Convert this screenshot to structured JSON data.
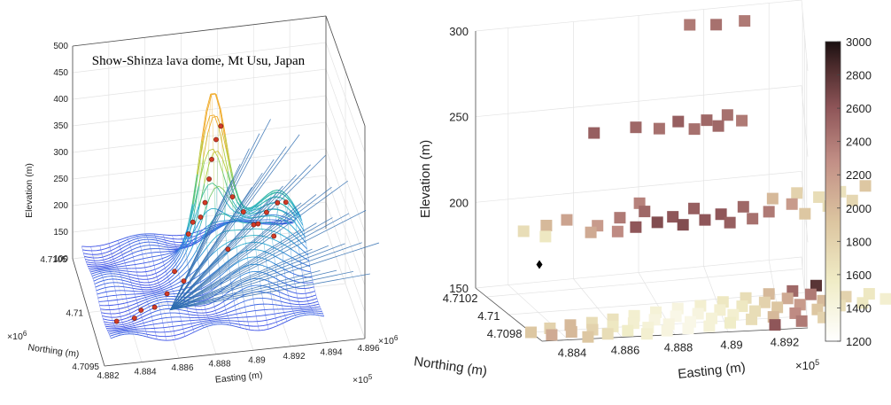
{
  "chart_data": [
    {
      "type": "surface",
      "title": "Show-Shinza lava dome, Mt Usu, Japan",
      "xlabel": "Easting (m)",
      "ylabel": "Northing (m)",
      "zlabel": "Elevation (m)",
      "x_ticks": [
        "4.882",
        "4.884",
        "4.886",
        "4.888",
        "4.89",
        "4.892",
        "4.894",
        "4.896"
      ],
      "x_exponent": "×10",
      "x_exponent_power": "5",
      "y_ticks": [
        "4.7095",
        "4.71",
        "4.7105"
      ],
      "y_exponent": "×10",
      "y_exponent_power": "6",
      "z_ticks": [
        "100",
        "150",
        "200",
        "250",
        "300",
        "350",
        "400",
        "450",
        "500"
      ],
      "zlim": [
        100,
        500
      ],
      "xlim": [
        488200,
        489600
      ],
      "ylim": [
        4709500,
        4710500
      ],
      "grid": true,
      "stations": [
        [
          488300,
          4709700,
          140
        ],
        [
          488400,
          4709720,
          138
        ],
        [
          488450,
          4709800,
          135
        ],
        [
          488520,
          4709780,
          142
        ],
        [
          488600,
          4709850,
          150
        ],
        [
          488700,
          4709900,
          160
        ],
        [
          488820,
          4710050,
          245
        ],
        [
          488850,
          4710080,
          265
        ],
        [
          488880,
          4710120,
          300
        ],
        [
          488900,
          4710150,
          330
        ],
        [
          488930,
          4710180,
          360
        ],
        [
          488960,
          4710200,
          380
        ],
        [
          488780,
          4710060,
          235
        ],
        [
          488750,
          4710030,
          220
        ],
        [
          489000,
          4710080,
          270
        ],
        [
          489050,
          4710030,
          250
        ],
        [
          489120,
          4709980,
          235
        ],
        [
          489180,
          4710050,
          240
        ],
        [
          489250,
          4710100,
          245
        ],
        [
          489300,
          4710120,
          240
        ],
        [
          488950,
          4709950,
          200
        ],
        [
          489100,
          4710000,
          230
        ],
        [
          488650,
          4709900,
          180
        ],
        [
          489200,
          4709950,
          215
        ]
      ]
    },
    {
      "type": "scatter3d",
      "zlabel": "Elevation (m)",
      "ylabel": "Northing (m)",
      "xlabel": "Easting (m)",
      "z_ticks": [
        "150",
        "200",
        "250",
        "300"
      ],
      "zlim": [
        150,
        300
      ],
      "x_ticks": [
        "4.884",
        "4.886",
        "4.888",
        "4.89",
        "4.892"
      ],
      "x_exponent": "×10",
      "x_exponent_power": "5",
      "xlim": [
        488300,
        489300
      ],
      "y_ticks": [
        "4.7098",
        "4.71",
        "4.7102"
      ],
      "ylim": [
        4709700,
        4710300
      ],
      "grid": true,
      "colorbar": {
        "ticks": [
          "1200",
          "1400",
          "1600",
          "1800",
          "2000",
          "2200",
          "2400",
          "2600",
          "2800",
          "3000"
        ],
        "clim": [
          1200,
          3000
        ]
      },
      "marker_point": {
        "x": 488420,
        "y": 4710050,
        "z": 175
      },
      "layers": [
        {
          "z": 295,
          "points": [
            [
              488950,
              4710250,
              2400
            ],
            [
              489030,
              4710230,
              2450
            ],
            [
              489120,
              4710240,
              2400
            ]
          ]
        },
        {
          "z": 245,
          "points": [
            [
              488620,
              4710120,
              2550
            ],
            [
              488760,
              4710140,
              2500
            ],
            [
              488830,
              4710110,
              2450
            ],
            [
              488900,
              4710160,
              2550
            ],
            [
              488990,
              4710150,
              2500
            ],
            [
              489060,
              4710180,
              2450
            ],
            [
              489020,
              4710090,
              2500
            ],
            [
              488940,
              4710080,
              2450
            ],
            [
              489100,
              4710120,
              2400
            ]
          ]
        },
        {
          "z": 198,
          "points": [
            [
              488350,
              4710000,
              1700
            ],
            [
              488440,
              4710040,
              2000
            ],
            [
              488520,
              4710080,
              2150
            ],
            [
              488600,
              4710000,
              2200
            ],
            [
              488690,
              4710060,
              2400
            ],
            [
              488780,
              4710100,
              2500
            ],
            [
              488860,
              4710030,
              2600
            ],
            [
              488940,
              4710090,
              2550
            ],
            [
              489020,
              4710020,
              2600
            ],
            [
              489100,
              4710070,
              2500
            ],
            [
              489180,
              4710010,
              2400
            ],
            [
              489260,
              4710060,
              2200
            ],
            [
              488720,
              4709960,
              2600
            ],
            [
              488800,
              4709990,
              2650
            ],
            [
              488880,
              4709950,
              2650
            ],
            [
              488960,
              4709980,
              2600
            ],
            [
              489040,
              4709940,
              2550
            ],
            [
              489120,
              4709960,
              2450
            ],
            [
              488560,
              4709940,
              2100
            ],
            [
              488650,
              4709930,
              2300
            ],
            [
              489200,
              4710120,
              2000
            ],
            [
              489280,
              4710150,
              1800
            ],
            [
              489350,
              4710100,
              1700
            ],
            [
              489420,
              4710130,
              1650
            ],
            [
              489500,
              4710160,
              1900
            ],
            [
              488400,
              4709930,
              1600
            ],
            [
              489300,
              4709970,
              1900
            ],
            [
              489380,
              4710020,
              1700
            ],
            [
              489460,
              4710050,
              1750
            ],
            [
              488780,
              4710180,
              2350
            ]
          ]
        },
        {
          "z": 150,
          "points": [
            [
              488300,
              4709800,
              1900
            ],
            [
              488380,
              4709830,
              1800
            ],
            [
              488460,
              4709850,
              2000
            ],
            [
              488540,
              4709860,
              1700
            ],
            [
              488620,
              4709880,
              1650
            ],
            [
              488700,
              4709900,
              1500
            ],
            [
              488780,
              4709920,
              1450
            ],
            [
              488860,
              4709940,
              1400
            ],
            [
              488940,
              4709950,
              1500
            ],
            [
              489020,
              4709970,
              1600
            ],
            [
              489100,
              4709990,
              1700
            ],
            [
              489180,
              4710010,
              2000
            ],
            [
              489260,
              4710020,
              2500
            ],
            [
              489340,
              4710050,
              2800
            ],
            [
              488360,
              4709760,
              2100
            ],
            [
              488440,
              4709780,
              2000
            ],
            [
              488520,
              4709790,
              1800
            ],
            [
              488600,
              4709810,
              1600
            ],
            [
              488680,
              4709830,
              1500
            ],
            [
              488760,
              4709850,
              1400
            ],
            [
              488840,
              4709870,
              1350
            ],
            [
              488920,
              4709880,
              1400
            ],
            [
              489000,
              4709900,
              1500
            ],
            [
              489080,
              4709920,
              1600
            ],
            [
              489160,
              4709940,
              1800
            ],
            [
              489240,
              4709960,
              2100
            ],
            [
              489320,
              4709980,
              2400
            ],
            [
              489400,
              4710000,
              2200
            ],
            [
              488480,
              4709720,
              1900
            ],
            [
              488560,
              4709740,
              1700
            ],
            [
              488640,
              4709760,
              1550
            ],
            [
              488720,
              4709780,
              1450
            ],
            [
              488800,
              4709800,
              1400
            ],
            [
              488880,
              4709810,
              1350
            ],
            [
              488960,
              4709830,
              1450
            ],
            [
              489040,
              4709850,
              1500
            ],
            [
              489120,
              4709870,
              1700
            ],
            [
              489200,
              4709890,
              1900
            ],
            [
              489280,
              4709900,
              2200
            ],
            [
              489360,
              4709920,
              2000
            ],
            [
              489440,
              4709940,
              1800
            ],
            [
              489520,
              4709950,
              1600
            ],
            [
              488700,
              4709720,
              1500
            ],
            [
              488780,
              4709740,
              1400
            ],
            [
              488860,
              4709750,
              1350
            ],
            [
              488940,
              4709760,
              1450
            ],
            [
              489020,
              4709780,
              1550
            ],
            [
              489100,
              4709800,
              1700
            ],
            [
              489180,
              4709810,
              2000
            ],
            [
              489260,
              4709830,
              2300
            ],
            [
              489340,
              4709850,
              1900
            ],
            [
              489420,
              4709870,
              1700
            ],
            [
              489500,
              4709880,
              1600
            ],
            [
              489580,
              4709900,
              1500
            ],
            [
              489280,
              4709760,
              2400
            ],
            [
              489360,
              4709780,
              1800
            ],
            [
              489180,
              4709740,
              2600
            ]
          ]
        }
      ]
    }
  ]
}
